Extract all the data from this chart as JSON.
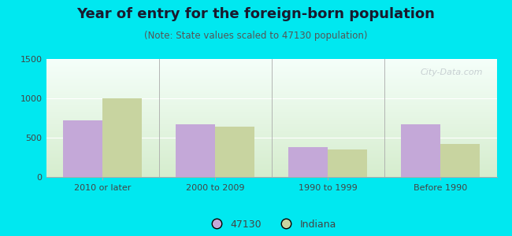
{
  "title": "Year of entry for the foreign-born population",
  "subtitle": "(Note: State values scaled to 47130 population)",
  "categories": [
    "2010 or later",
    "2000 to 2009",
    "1990 to 1999",
    "Before 1990"
  ],
  "values_47130": [
    720,
    670,
    380,
    670
  ],
  "values_indiana": [
    1000,
    640,
    350,
    420
  ],
  "color_47130": "#c4a8d8",
  "color_indiana": "#c8d4a0",
  "background_outer": "#00e8f0",
  "ylim": [
    0,
    1500
  ],
  "yticks": [
    0,
    500,
    1000,
    1500
  ],
  "bar_width": 0.35,
  "legend_label_47130": "47130",
  "legend_label_indiana": "Indiana",
  "title_fontsize": 13,
  "subtitle_fontsize": 8.5,
  "tick_fontsize": 8,
  "legend_fontsize": 9,
  "title_color": "#1a1a2e",
  "subtitle_color": "#555555",
  "tick_color": "#444444",
  "watermark_color": "#c0c8cc",
  "gradient_top": "#f5fffa",
  "gradient_bottom": "#d6edce"
}
